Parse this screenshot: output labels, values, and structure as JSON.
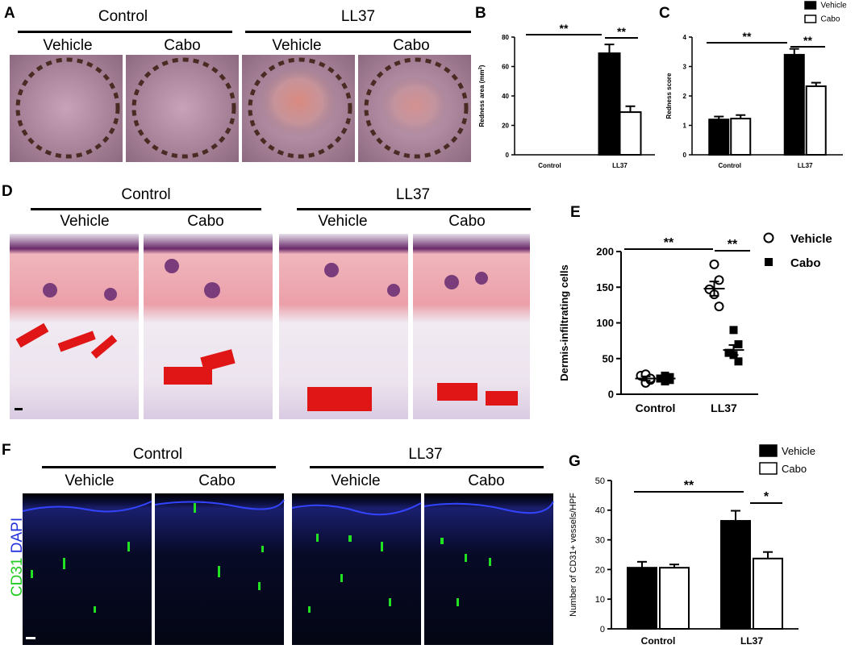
{
  "panels": {
    "A": {
      "label": "A",
      "groups": [
        "Control",
        "LL37"
      ],
      "subs": [
        "Vehicle",
        "Cabo",
        "Vehicle",
        "Cabo"
      ]
    },
    "B": {
      "label": "B"
    },
    "C": {
      "label": "C"
    },
    "D": {
      "label": "D",
      "groups": [
        "Control",
        "LL37"
      ],
      "subs": [
        "Vehicle",
        "Cabo",
        "Vehicle",
        "Cabo"
      ]
    },
    "E": {
      "label": "E"
    },
    "F": {
      "label": "F",
      "groups": [
        "Control",
        "LL37"
      ],
      "subs": [
        "Vehicle",
        "Cabo",
        "Vehicle",
        "Cabo"
      ],
      "stain_cd31": "CD31",
      "stain_dapi": "DAPI"
    },
    "G": {
      "label": "G"
    }
  },
  "colors": {
    "he_pink": "#e9a7b7",
    "vessel_red": "#e01515",
    "fluor_green": "#22e022",
    "dapi_blue": "#2233dd"
  },
  "chart_data": [
    {
      "id": "B",
      "type": "bar",
      "categories": [
        "Control",
        "LL37"
      ],
      "series": [
        {
          "name": "Vehicle",
          "values": [
            0,
            69
          ],
          "errors": [
            0,
            6
          ],
          "fill": "#000000"
        },
        {
          "name": "Cabo",
          "values": [
            0,
            29
          ],
          "errors": [
            0,
            4
          ],
          "fill": "#ffffff"
        }
      ],
      "ylabel": "Redness area (mm²)",
      "ylim": [
        0,
        80
      ],
      "yticks": [
        0,
        20,
        40,
        60,
        80
      ],
      "annotations": [
        "**",
        "**"
      ]
    },
    {
      "id": "C",
      "type": "bar",
      "categories": [
        "Control",
        "LL37"
      ],
      "series": [
        {
          "name": "Vehicle",
          "values": [
            1.2,
            3.4
          ],
          "errors": [
            0.1,
            0.2
          ],
          "fill": "#000000"
        },
        {
          "name": "Cabo",
          "values": [
            1.23,
            2.33
          ],
          "errors": [
            0.12,
            0.12
          ],
          "fill": "#ffffff"
        }
      ],
      "ylabel": "Redness score",
      "ylim": [
        0,
        4
      ],
      "yticks": [
        0,
        1,
        2,
        3,
        4
      ],
      "legend": [
        "Vehicle",
        "Cabo"
      ],
      "legend_position": "top-right",
      "annotations": [
        "**",
        "**"
      ]
    },
    {
      "id": "E",
      "type": "scatter",
      "categories": [
        "Control",
        "LL37"
      ],
      "series": [
        {
          "name": "Vehicle",
          "marker": "circle",
          "mean": [
            22,
            148
          ],
          "sem": [
            3,
            10
          ],
          "points": [
            [
              0,
              16
            ],
            [
              0,
              20
            ],
            [
              0,
              26
            ],
            [
              0,
              28
            ],
            [
              0,
              22
            ],
            [
              1,
              182
            ],
            [
              1,
              160
            ],
            [
              1,
              147
            ],
            [
              1,
              140
            ],
            [
              1,
              123
            ]
          ]
        },
        {
          "name": "Cabo",
          "marker": "square",
          "mean": [
            22,
            62
          ],
          "sem": [
            2,
            7
          ],
          "points": [
            [
              0,
              18
            ],
            [
              0,
              20
            ],
            [
              0,
              22
            ],
            [
              0,
              26
            ],
            [
              0,
              24
            ],
            [
              1,
              90
            ],
            [
              1,
              70
            ],
            [
              1,
              58
            ],
            [
              1,
              55
            ],
            [
              1,
              46
            ]
          ]
        }
      ],
      "ylabel": "Dermis-infiltrating cells",
      "ylim": [
        0,
        200
      ],
      "yticks": [
        0,
        50,
        100,
        150,
        200
      ],
      "legend": [
        "Vehicle",
        "Cabo"
      ],
      "legend_position": "top-right",
      "annotations": [
        "**",
        "**"
      ]
    },
    {
      "id": "G",
      "type": "bar",
      "categories": [
        "Control",
        "LL37"
      ],
      "series": [
        {
          "name": "Vehicle",
          "values": [
            20.6,
            36.4
          ],
          "errors": [
            2.0,
            3.4
          ],
          "fill": "#000000"
        },
        {
          "name": "Cabo",
          "values": [
            20.6,
            23.7
          ],
          "errors": [
            1.1,
            2.2
          ],
          "fill": "#ffffff"
        }
      ],
      "ylabel": "Number of CD31+ vessels/HPF",
      "ylim": [
        0,
        50
      ],
      "yticks": [
        0,
        10,
        20,
        30,
        40,
        50
      ],
      "legend": [
        "Vehicle",
        "Cabo"
      ],
      "legend_position": "top-right",
      "annotations": [
        "**",
        "*"
      ]
    }
  ]
}
